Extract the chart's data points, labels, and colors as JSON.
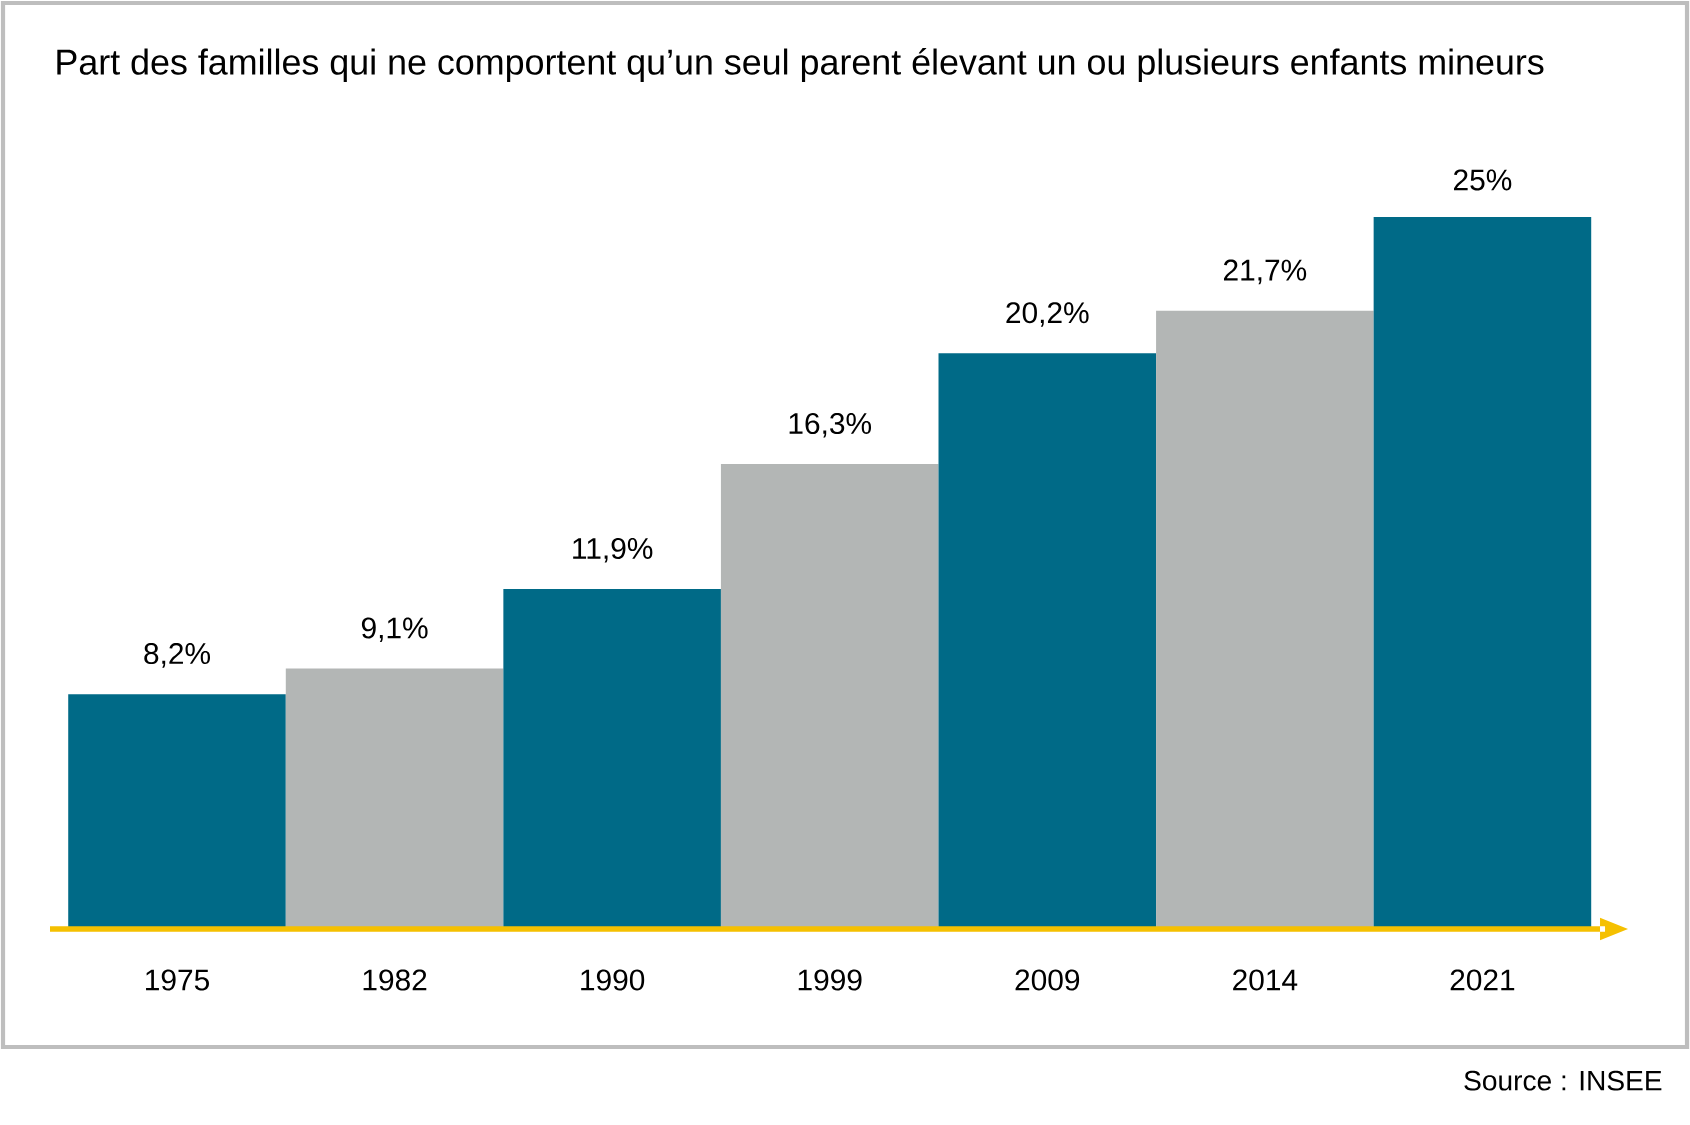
{
  "chart_data": {
    "type": "bar",
    "title": "Part des familles qui ne comportent qu’un seul parent élevant un ou plusieurs enfants mineurs",
    "categories": [
      "1975",
      "1982",
      "1990",
      "1999",
      "2009",
      "2014",
      "2021"
    ],
    "values": [
      8.2,
      9.1,
      11.9,
      16.3,
      20.2,
      21.7,
      25
    ],
    "colors": [
      "#006a87",
      "#b3b6b5",
      "#006a87",
      "#b3b6b5",
      "#006a87",
      "#b3b6b5",
      "#006a87"
    ],
    "value_labels": [
      "8,2%",
      "9,1%",
      "11,9%",
      "16,3%",
      "20,2%",
      "21,7%",
      "25%"
    ],
    "annotations": [
      "Source : INSEE"
    ]
  }
}
